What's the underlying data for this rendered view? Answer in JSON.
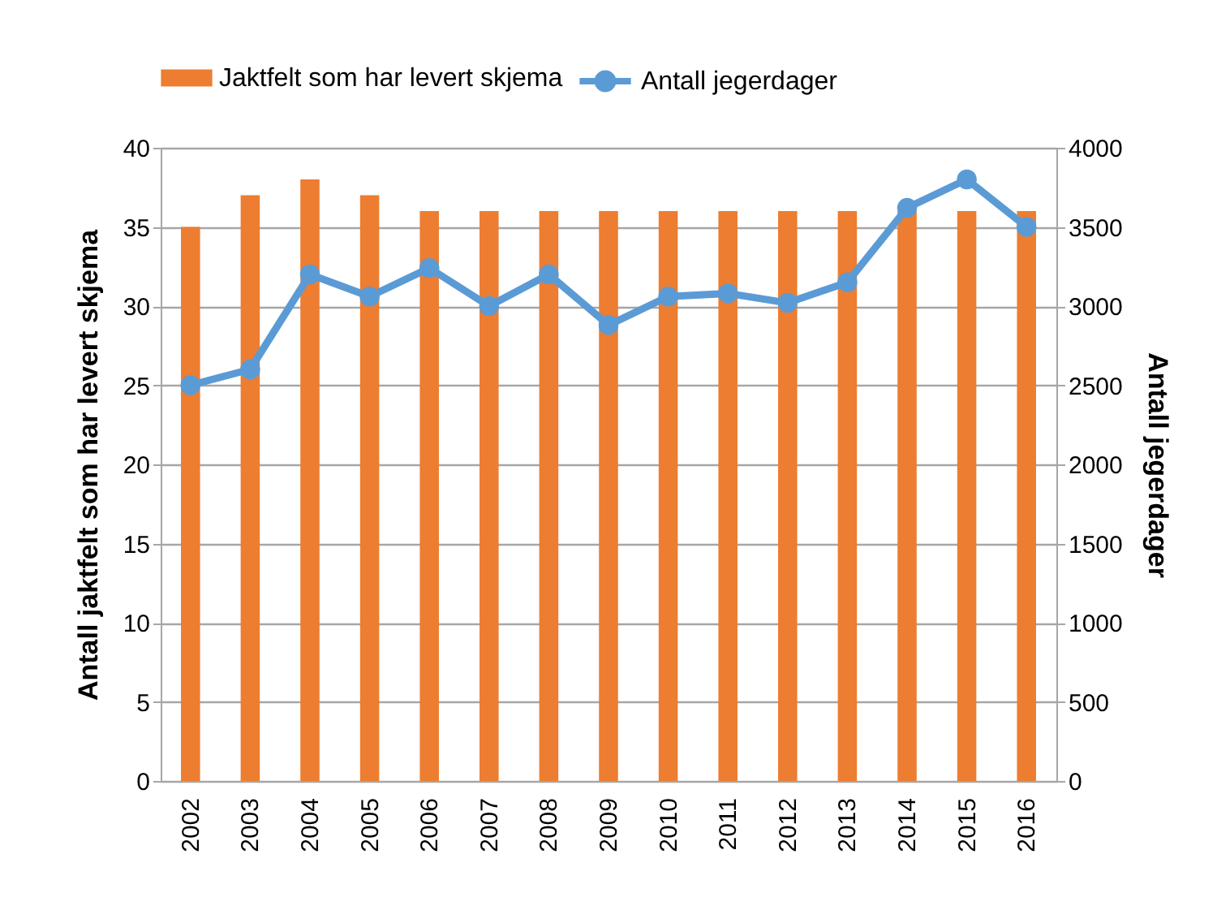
{
  "chart_data": {
    "type": "bar",
    "categories": [
      "2002",
      "2003",
      "2004",
      "2005",
      "2006",
      "2007",
      "2008",
      "2009",
      "2010",
      "2011",
      "2012",
      "2013",
      "2014",
      "2015",
      "2016"
    ],
    "series": [
      {
        "name": "Jaktfelt som har levert skjema",
        "color": "#ed7d31",
        "values": [
          35,
          37,
          38,
          37,
          36,
          36,
          36,
          36,
          36,
          36,
          36,
          36,
          36,
          36,
          36
        ]
      },
      {
        "name": "Antall jegerdager",
        "type": "line",
        "axis": "y2",
        "color": "#5b9bd5",
        "values": [
          2500,
          2600,
          3200,
          3060,
          3240,
          3000,
          3200,
          2880,
          3060,
          3080,
          3020,
          3150,
          3620,
          3800,
          3500
        ]
      }
    ],
    "ylabel": "Antall jaktfelt som har levert skjema",
    "y2label": "Antall jegerdager",
    "ylim": [
      0,
      40
    ],
    "yticks": [
      0,
      5,
      10,
      15,
      20,
      25,
      30,
      35,
      40
    ],
    "y2lim": [
      0,
      4000
    ],
    "y2ticks": [
      0,
      500,
      1000,
      1500,
      2000,
      2500,
      3000,
      3500,
      4000
    ],
    "grid": "y",
    "legend": "top",
    "marker": "circle"
  }
}
